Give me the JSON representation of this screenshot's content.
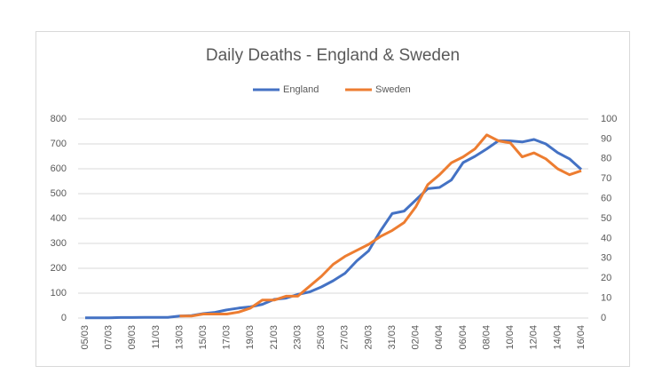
{
  "chart_data": {
    "type": "line",
    "title": "Daily Deaths - England & Sweden",
    "categories": [
      "05/03",
      null,
      "07/03",
      null,
      "09/03",
      null,
      "11/03",
      null,
      "13/03",
      null,
      "15/03",
      null,
      "17/03",
      null,
      "19/03",
      null,
      "21/03",
      null,
      "23/03",
      null,
      "25/03",
      null,
      "27/03",
      null,
      "29/03",
      null,
      "31/03",
      null,
      "02/04",
      null,
      "04/04",
      null,
      "06/04",
      null,
      "08/04",
      null,
      "10/04",
      null,
      "12/04",
      null,
      "14/04",
      null,
      "16/04"
    ],
    "series": [
      {
        "name": "England",
        "color": "#4472c4",
        "values": [
          1,
          1,
          1,
          2,
          2,
          3,
          3,
          3,
          8,
          10,
          18,
          23,
          33,
          40,
          45,
          55,
          75,
          80,
          95,
          105,
          125,
          150,
          180,
          230,
          270,
          350,
          420,
          430,
          475,
          520,
          525,
          555,
          625,
          650,
          680,
          713,
          712,
          708,
          718,
          700,
          665,
          640,
          597
        ]
      },
      {
        "name": "Sweden",
        "color": "#ed7d31",
        "axis": "y2",
        "values": [
          null,
          null,
          null,
          null,
          null,
          null,
          null,
          null,
          1,
          1,
          2,
          2,
          2,
          3,
          5,
          9,
          9,
          11,
          11,
          16,
          21,
          27,
          31,
          34,
          37,
          41,
          44,
          48,
          56,
          67,
          72,
          78,
          81,
          85,
          92,
          89,
          88,
          81,
          83,
          80,
          75,
          72,
          74
        ]
      }
    ],
    "ylim": [
      0,
      800
    ],
    "yticks": [
      0,
      100,
      200,
      300,
      400,
      500,
      600,
      700,
      800
    ],
    "y2lim": [
      0,
      100
    ],
    "y2ticks": [
      0,
      10,
      20,
      30,
      40,
      50,
      60,
      70,
      80,
      90,
      100
    ],
    "grid": true,
    "legend": "top"
  }
}
